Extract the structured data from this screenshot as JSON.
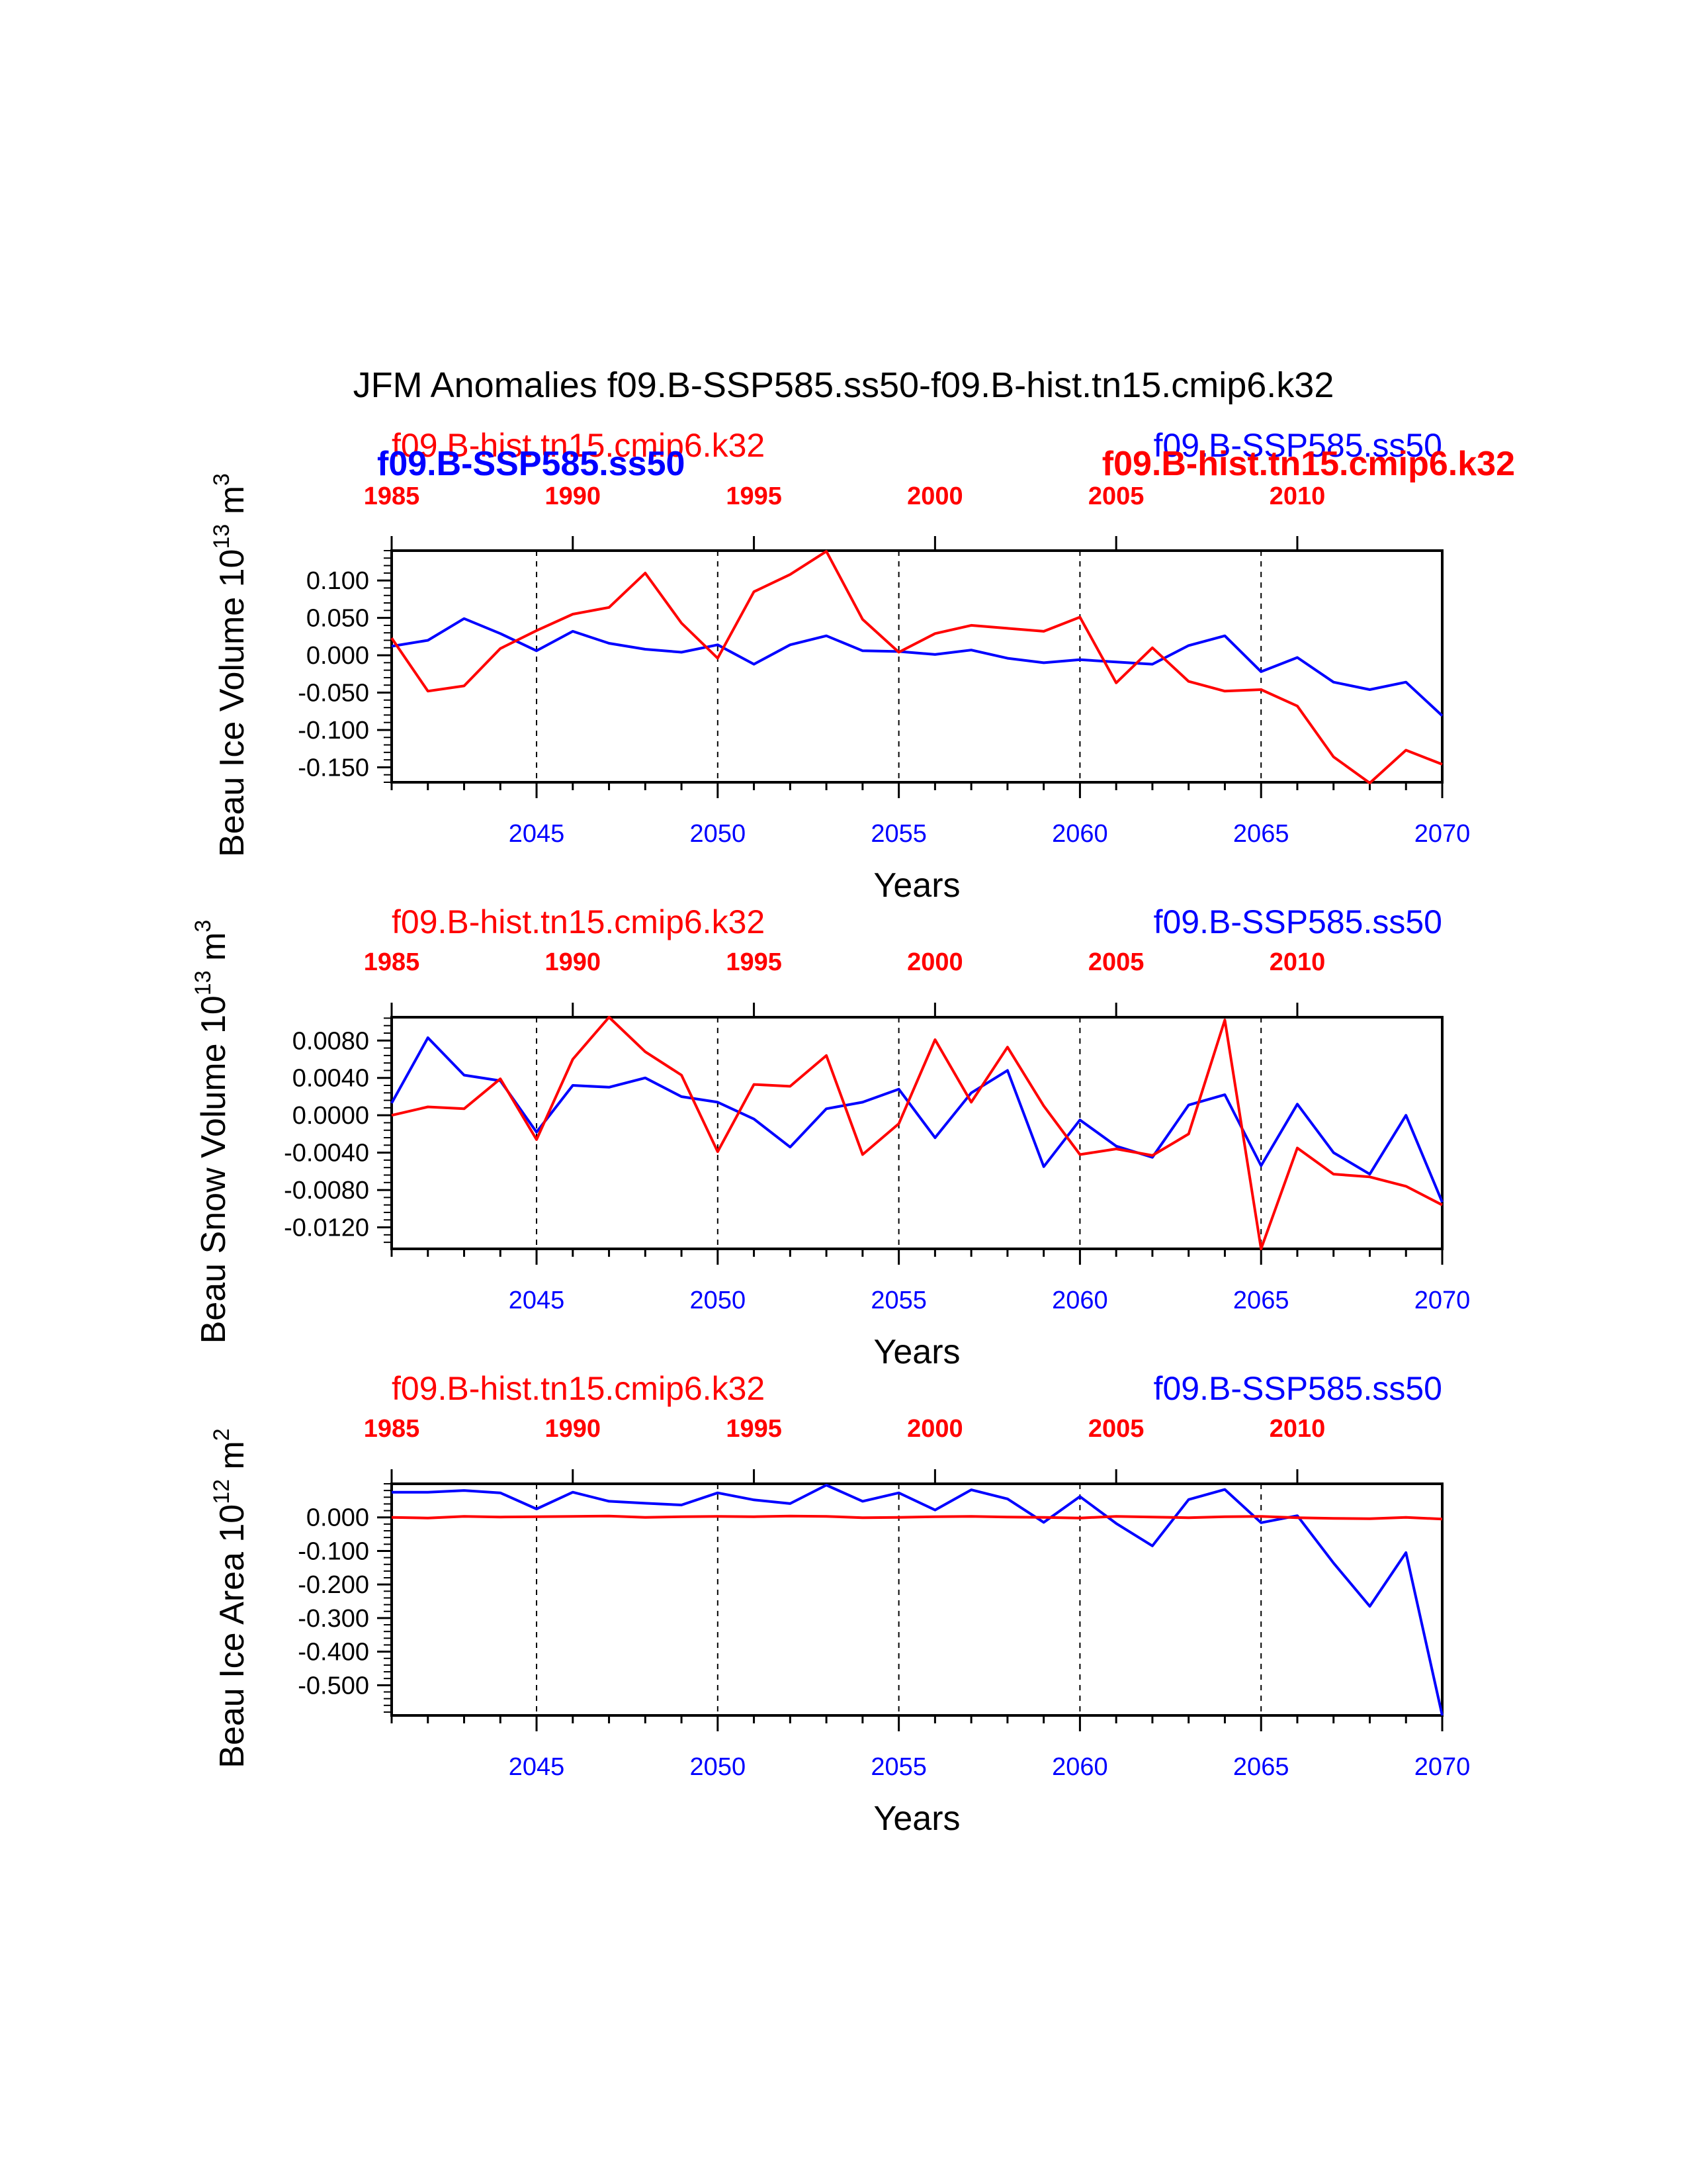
{
  "title": "JFM Anomalies f09.B-SSP585.ss50-f09.B-hist.tn15.cmip6.k32",
  "colors": {
    "ssp": "#0000ff",
    "hist": "#ff0000",
    "axis": "#000000"
  },
  "chart_data": [
    {
      "type": "line",
      "ylabel_main": "Beau Ice Volume 10",
      "ylabel_exp": "13",
      "ylabel_unit": " m",
      "ylabel_unit_exp": "3",
      "xlabel": "Years",
      "ylim": [
        -0.17,
        0.14
      ],
      "yticks": [
        0.1,
        0.05,
        0.0,
        -0.05,
        -0.1,
        -0.15
      ],
      "ytick_labels": [
        "0.100",
        "0.050",
        "0.000",
        "-0.050",
        "-0.100",
        "-0.150"
      ],
      "top_labels": {
        "hist": "f09.B-hist.tn15.cmip6.k32",
        "ssp": "f09.B-SSP585.ss50",
        "ssp_bold": "f09.B-SSP585.ss50",
        "hist_bold": "f09.B-hist.tn15.cmip6.k32"
      },
      "series": [
        {
          "name": "f09.B-SSP585.ss50",
          "color": "#0000ff",
          "x": [
            2041,
            2042,
            2043,
            2044,
            2045,
            2046,
            2047,
            2048,
            2049,
            2050,
            2051,
            2052,
            2053,
            2054,
            2055,
            2056,
            2057,
            2058,
            2059,
            2060,
            2061,
            2062,
            2063,
            2064,
            2065,
            2066,
            2067,
            2068,
            2069,
            2070
          ],
          "values": [
            0.012,
            0.02,
            0.049,
            0.029,
            0.006,
            0.032,
            0.016,
            0.008,
            0.004,
            0.014,
            -0.012,
            0.014,
            0.026,
            0.006,
            0.005,
            0.001,
            0.007,
            -0.004,
            -0.01,
            -0.006,
            -0.009,
            -0.012,
            0.013,
            0.026,
            -0.022,
            -0.003,
            -0.036,
            -0.046,
            -0.036,
            -0.081
          ]
        },
        {
          "name": "f09.B-hist.tn15.cmip6.k32",
          "color": "#ff0000",
          "x": [
            1985,
            1986,
            1987,
            1988,
            1989,
            1990,
            1991,
            1992,
            1993,
            1994,
            1995,
            1996,
            1997,
            1998,
            1999,
            2000,
            2001,
            2002,
            2003,
            2004,
            2005,
            2006,
            2007,
            2008,
            2009,
            2010,
            2011,
            2012,
            2013,
            2014
          ],
          "values": [
            0.023,
            -0.048,
            -0.041,
            0.009,
            0.033,
            0.055,
            0.064,
            0.11,
            0.043,
            -0.004,
            0.085,
            0.108,
            0.139,
            0.048,
            0.004,
            0.029,
            0.04,
            0.036,
            0.032,
            0.051,
            -0.037,
            0.01,
            -0.035,
            -0.048,
            -0.046,
            -0.068,
            -0.136,
            -0.171,
            -0.127,
            -0.146
          ]
        }
      ]
    },
    {
      "type": "line",
      "ylabel_main": "Beau Snow Volume 10",
      "ylabel_exp": "13",
      "ylabel_unit": " m",
      "ylabel_unit_exp": "3",
      "xlabel": "Years",
      "ylim": [
        -0.0143,
        0.0105
      ],
      "yticks": [
        0.008,
        0.004,
        0.0,
        -0.004,
        -0.008,
        -0.012
      ],
      "ytick_labels": [
        "0.0080",
        "0.0040",
        "0.0000",
        "-0.0040",
        "-0.0080",
        "-0.0120"
      ],
      "top_labels": {
        "hist": "f09.B-hist.tn15.cmip6.k32",
        "ssp": "f09.B-SSP585.ss50"
      },
      "series": [
        {
          "name": "f09.B-SSP585.ss50",
          "color": "#0000ff",
          "x": [
            2041,
            2042,
            2043,
            2044,
            2045,
            2046,
            2047,
            2048,
            2049,
            2050,
            2051,
            2052,
            2053,
            2054,
            2055,
            2056,
            2057,
            2058,
            2059,
            2060,
            2061,
            2062,
            2063,
            2064,
            2065,
            2066,
            2067,
            2068,
            2069,
            2070
          ],
          "values": [
            0.0013,
            0.0083,
            0.0043,
            0.0037,
            -0.0018,
            0.0032,
            0.003,
            0.004,
            0.002,
            0.0014,
            -0.0004,
            -0.0034,
            0.0007,
            0.0014,
            0.0028,
            -0.0024,
            0.0024,
            0.0048,
            -0.0055,
            -0.0005,
            -0.0033,
            -0.0045,
            0.0011,
            0.0022,
            -0.0054,
            0.0012,
            -0.004,
            -0.0063,
            0.0,
            -0.0093
          ]
        },
        {
          "name": "f09.B-hist.tn15.cmip6.k32",
          "color": "#ff0000",
          "x": [
            1985,
            1986,
            1987,
            1988,
            1989,
            1990,
            1991,
            1992,
            1993,
            1994,
            1995,
            1996,
            1997,
            1998,
            1999,
            2000,
            2001,
            2002,
            2003,
            2004,
            2005,
            2006,
            2007,
            2008,
            2009,
            2010,
            2011,
            2012,
            2013,
            2014
          ],
          "values": [
            0.0,
            0.0009,
            0.0007,
            0.0039,
            -0.0026,
            0.006,
            0.0105,
            0.0068,
            0.0043,
            -0.0039,
            0.0033,
            0.0031,
            0.0064,
            -0.0042,
            -0.0009,
            0.0081,
            0.0014,
            0.0073,
            0.001,
            -0.0042,
            -0.0036,
            -0.0043,
            -0.002,
            0.0102,
            -0.0143,
            -0.0035,
            -0.0063,
            -0.0066,
            -0.0076,
            -0.0096
          ]
        }
      ]
    },
    {
      "type": "line",
      "ylabel_main": "Beau Ice Area 10",
      "ylabel_exp": "12",
      "ylabel_unit": " m",
      "ylabel_unit_exp": "2",
      "xlabel": "Years",
      "ylim": [
        -0.59,
        0.1
      ],
      "yticks": [
        0.0,
        -0.1,
        -0.2,
        -0.3,
        -0.4,
        -0.5
      ],
      "ytick_labels": [
        "0.000",
        "-0.100",
        "-0.200",
        "-0.300",
        "-0.400",
        "-0.500"
      ],
      "top_labels": {
        "hist": "f09.B-hist.tn15.cmip6.k32",
        "ssp": "f09.B-SSP585.ss50"
      },
      "series": [
        {
          "name": "f09.B-SSP585.ss50",
          "color": "#0000ff",
          "x": [
            2041,
            2042,
            2043,
            2044,
            2045,
            2046,
            2047,
            2048,
            2049,
            2050,
            2051,
            2052,
            2053,
            2054,
            2055,
            2056,
            2057,
            2058,
            2059,
            2060,
            2061,
            2062,
            2063,
            2064,
            2065,
            2066,
            2067,
            2068,
            2069,
            2070
          ],
          "values": [
            0.075,
            0.075,
            0.08,
            0.073,
            0.025,
            0.075,
            0.048,
            0.042,
            0.037,
            0.073,
            0.052,
            0.041,
            0.096,
            0.048,
            0.073,
            0.022,
            0.082,
            0.055,
            -0.015,
            0.062,
            -0.018,
            -0.085,
            0.053,
            0.083,
            -0.016,
            0.005,
            -0.136,
            -0.265,
            -0.105,
            -0.59
          ]
        },
        {
          "name": "f09.B-hist.tn15.cmip6.k32",
          "color": "#ff0000",
          "x": [
            1985,
            1986,
            1987,
            1988,
            1989,
            1990,
            1991,
            1992,
            1993,
            1994,
            1995,
            1996,
            1997,
            1998,
            1999,
            2000,
            2001,
            2002,
            2003,
            2004,
            2005,
            2006,
            2007,
            2008,
            2009,
            2010,
            2011,
            2012,
            2013,
            2014
          ],
          "values": [
            0.0,
            -0.002,
            0.003,
            0.001,
            0.002,
            0.003,
            0.004,
            0.0,
            0.002,
            0.003,
            0.002,
            0.004,
            0.003,
            -0.001,
            0.0,
            0.002,
            0.003,
            0.001,
            0.0,
            -0.002,
            0.003,
            0.001,
            -0.001,
            0.002,
            0.003,
            -0.001,
            -0.003,
            -0.004,
            0.0,
            -0.005
          ]
        }
      ]
    }
  ],
  "axes": {
    "bottom_ticks": [
      2045,
      2050,
      2055,
      2060,
      2065,
      2070
    ],
    "bottom_labels": [
      "2045",
      "2050",
      "2055",
      "2060",
      "2065",
      "2070"
    ],
    "top_ticks": [
      1985,
      1990,
      1995,
      2000,
      2005,
      2010
    ],
    "top_labels": [
      "1985",
      "1990",
      "1995",
      "2000",
      "2005",
      "2010"
    ],
    "x_min": 2041,
    "x_max": 2070,
    "hist_offset": 56,
    "grid_lines": [
      2045,
      2050,
      2055,
      2060,
      2065
    ]
  }
}
